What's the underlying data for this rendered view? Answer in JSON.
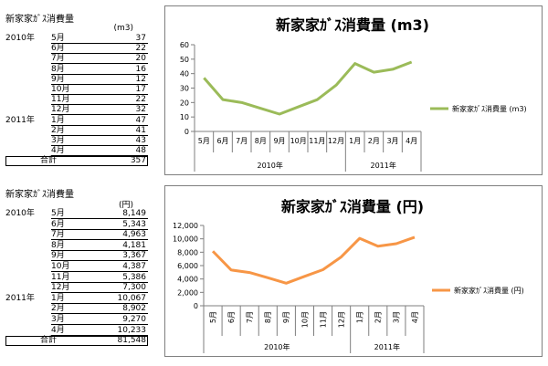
{
  "table1": {
    "title": "新家家ｶﾞｽ消費量",
    "unit": "(m3)",
    "rows": [
      {
        "year": "2010年",
        "month": "5月",
        "value": "37"
      },
      {
        "year": "",
        "month": "6月",
        "value": "22"
      },
      {
        "year": "",
        "month": "7月",
        "value": "20"
      },
      {
        "year": "",
        "month": "8月",
        "value": "16"
      },
      {
        "year": "",
        "month": "9月",
        "value": "12"
      },
      {
        "year": "",
        "month": "10月",
        "value": "17"
      },
      {
        "year": "",
        "month": "11月",
        "value": "22"
      },
      {
        "year": "",
        "month": "12月",
        "value": "32"
      },
      {
        "year": "2011年",
        "month": "1月",
        "value": "47"
      },
      {
        "year": "",
        "month": "2月",
        "value": "41"
      },
      {
        "year": "",
        "month": "3月",
        "value": "43"
      },
      {
        "year": "",
        "month": "4月",
        "value": "48"
      }
    ],
    "total_label": "合計",
    "total_value": "357"
  },
  "table2": {
    "title": "新家家ｶﾞｽ消費量",
    "unit": "(円)",
    "rows": [
      {
        "year": "2010年",
        "month": "5月",
        "value": "8,149"
      },
      {
        "year": "",
        "month": "6月",
        "value": "5,343"
      },
      {
        "year": "",
        "month": "7月",
        "value": "4,963"
      },
      {
        "year": "",
        "month": "8月",
        "value": "4,181"
      },
      {
        "year": "",
        "month": "9月",
        "value": "3,367"
      },
      {
        "year": "",
        "month": "10月",
        "value": "4,387"
      },
      {
        "year": "",
        "month": "11月",
        "value": "5,386"
      },
      {
        "year": "",
        "month": "12月",
        "value": "7,300"
      },
      {
        "year": "2011年",
        "month": "1月",
        "value": "10,067"
      },
      {
        "year": "",
        "month": "2月",
        "value": "8,902"
      },
      {
        "year": "",
        "month": "3月",
        "value": "9,270"
      },
      {
        "year": "",
        "month": "4月",
        "value": "10,233"
      }
    ],
    "total_label": "合計",
    "total_value": "81,548"
  },
  "chart_data": [
    {
      "type": "line",
      "title": "新家家ｶﾞｽ消費量 (m3)",
      "categories": [
        "5月",
        "6月",
        "7月",
        "8月",
        "9月",
        "10月",
        "11月",
        "12月",
        "1月",
        "2月",
        "3月",
        "4月"
      ],
      "groups": [
        {
          "label": "2010年",
          "count": 8
        },
        {
          "label": "2011年",
          "count": 4
        }
      ],
      "series": [
        {
          "name": "新家家ｶﾞｽ消費量 (m3)",
          "values": [
            37,
            22,
            20,
            16,
            12,
            17,
            22,
            32,
            47,
            41,
            43,
            48
          ]
        }
      ],
      "ylim": [
        0,
        60
      ],
      "yticks": [
        "0",
        "10",
        "20",
        "30",
        "40",
        "50",
        "60"
      ],
      "grid": false,
      "legend": "right",
      "color": "#9bbb59"
    },
    {
      "type": "line",
      "title": "新家家ｶﾞｽ消費量 (円)",
      "categories": [
        "5月",
        "6月",
        "7月",
        "8月",
        "9月",
        "10月",
        "11月",
        "12月",
        "1月",
        "2月",
        "3月",
        "4月"
      ],
      "groups": [
        {
          "label": "2010年",
          "count": 8
        },
        {
          "label": "2011年",
          "count": 4
        }
      ],
      "series": [
        {
          "name": "新家家ｶﾞｽ消費量 (円)",
          "values": [
            8149,
            5343,
            4963,
            4181,
            3367,
            4387,
            5386,
            7300,
            10067,
            8902,
            9270,
            10233
          ]
        }
      ],
      "ylim": [
        0,
        12000
      ],
      "yticks": [
        "0",
        "2,000",
        "4,000",
        "6,000",
        "8,000",
        "10,000",
        "12,000"
      ],
      "grid": false,
      "legend": "right",
      "color": "#f79646"
    }
  ]
}
